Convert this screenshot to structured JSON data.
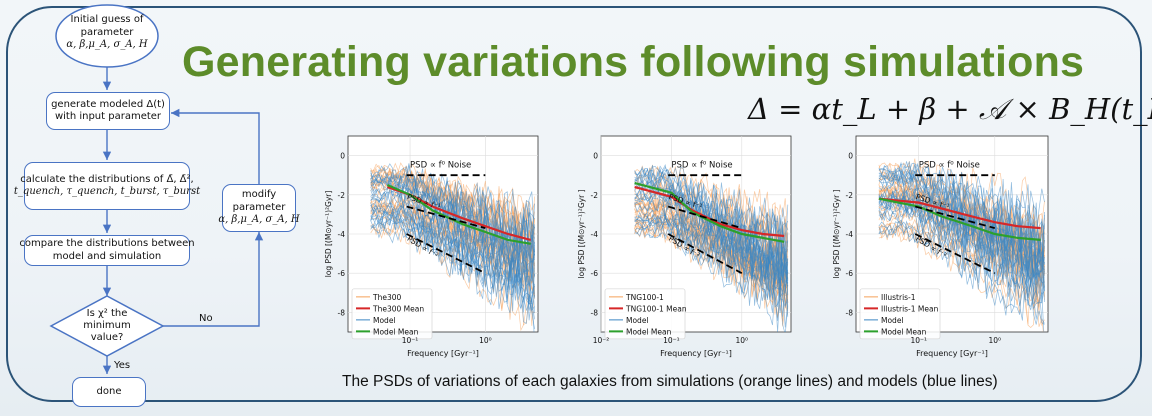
{
  "title": "Generating variations following simulations",
  "equation": "Δ = αt_L + β + 𝒜 × B_H(t_L)",
  "caption": "The PSDs of variations of each galaxies from simulations (orange lines) and models (blue lines)",
  "flowchart": {
    "start": {
      "line1": "Initial guess of",
      "line2": "parameter",
      "line3": "α, β,μ_A, σ_A, H"
    },
    "generate": {
      "line1": "generate modeled Δ(t)",
      "line2": "with input parameter"
    },
    "calculate": {
      "line1": "calculate the distributions of  Δ̄, Δ̄²,",
      "line2": "t_quench, τ_quench, t_burst, τ_burst"
    },
    "compare": {
      "line1": "compare the distributions between",
      "line2": "model and simulation"
    },
    "decision": {
      "line1": "Is χ² the",
      "line2": "minimum",
      "line3": "value?"
    },
    "modify": {
      "line1": "modify",
      "line2": "parameter",
      "line3": "α, β,μ_A, σ_A, H"
    },
    "done": "done",
    "no_label": "No",
    "yes_label": "Yes"
  },
  "chart_data": [
    {
      "type": "line",
      "xlabel": "Frequency [Gyr⁻¹]",
      "ylabel": "log PSD [(M⊙yr⁻¹)²Gyr]",
      "xscale": "log",
      "xlim": [
        0.015,
        5
      ],
      "ylim": [
        -9,
        1
      ],
      "xticks": [
        "10⁻¹",
        "10⁰"
      ],
      "yticks": [
        "0",
        "-2",
        "-4",
        "-6",
        "-8"
      ],
      "annotations": [
        "PSD ∝ f⁰ Noise",
        "PSD ∝ f⁻¹",
        "PSD ∝ f⁻²"
      ],
      "legend": [
        "The300",
        "The300 Mean",
        "Model",
        "Model Mean"
      ],
      "legend_position": "lower-left",
      "series": [
        {
          "name": "The300 Mean",
          "x": [
            0.05,
            0.1,
            0.2,
            0.5,
            1,
            2,
            4
          ],
          "y": [
            -1.6,
            -2.0,
            -2.6,
            -3.2,
            -3.6,
            -4.0,
            -4.3
          ]
        },
        {
          "name": "Model Mean",
          "x": [
            0.05,
            0.1,
            0.2,
            0.5,
            1,
            2,
            4
          ],
          "y": [
            -1.5,
            -2.0,
            -2.8,
            -3.5,
            -3.9,
            -4.3,
            -4.5
          ]
        }
      ],
      "colors": {
        "sim": "#f5a15a",
        "sim_mean": "#d62728",
        "model": "#3b86c4",
        "model_mean": "#2ca02c"
      }
    },
    {
      "type": "line",
      "xlabel": "Frequency [Gyr⁻¹]",
      "ylabel": "log PSD [(M⊙yr⁻¹)²Gyr ]",
      "xscale": "log",
      "xlim": [
        0.01,
        5
      ],
      "ylim": [
        -9,
        1
      ],
      "xticks": [
        "10⁻²",
        "10⁻¹",
        "10⁰"
      ],
      "yticks": [
        "0",
        "-2",
        "-4",
        "-6",
        "-8"
      ],
      "annotations": [
        "PSD ∝ f⁰ Noise",
        "PSD ∝ f⁻¹",
        "PSD ∝ f⁻²"
      ],
      "legend": [
        "TNG100-1",
        "TNG100-1 Mean",
        "Model",
        "Model Mean"
      ],
      "legend_position": "lower-left",
      "series": [
        {
          "name": "TNG100-1 Mean",
          "x": [
            0.03,
            0.1,
            0.2,
            0.5,
            1,
            2,
            4
          ],
          "y": [
            -1.6,
            -2.1,
            -2.8,
            -3.5,
            -3.8,
            -4.0,
            -4.1
          ]
        },
        {
          "name": "Model Mean",
          "x": [
            0.03,
            0.1,
            0.2,
            0.5,
            1,
            2,
            4
          ],
          "y": [
            -1.4,
            -1.9,
            -2.9,
            -3.6,
            -4.0,
            -4.2,
            -4.4
          ]
        }
      ],
      "colors": {
        "sim": "#f5a15a",
        "sim_mean": "#d62728",
        "model": "#3b86c4",
        "model_mean": "#2ca02c"
      }
    },
    {
      "type": "line",
      "xlabel": "Frequency [Gyr⁻¹]",
      "ylabel": "log PSD [(M⊙yr⁻¹)²Gyr ]",
      "xscale": "log",
      "xlim": [
        0.015,
        5
      ],
      "ylim": [
        -9,
        1
      ],
      "xticks": [
        "10⁻¹",
        "10⁰"
      ],
      "yticks": [
        "0",
        "-2",
        "-4",
        "-6",
        "-8"
      ],
      "annotations": [
        "PSD ∝ f⁰ Noise",
        "PSD ∝ f⁻¹",
        "PSD ∝ f⁻²"
      ],
      "legend": [
        "Illustris-1",
        "Illustris-1 Mean",
        "Model",
        "Model Mean"
      ],
      "legend_position": "lower-left",
      "series": [
        {
          "name": "Illustris-1 Mean",
          "x": [
            0.03,
            0.1,
            0.2,
            0.5,
            1,
            2,
            4
          ],
          "y": [
            -2.2,
            -2.4,
            -2.7,
            -3.1,
            -3.4,
            -3.6,
            -3.7
          ]
        },
        {
          "name": "Model Mean",
          "x": [
            0.03,
            0.1,
            0.2,
            0.5,
            1,
            2,
            4
          ],
          "y": [
            -2.2,
            -2.6,
            -3.1,
            -3.6,
            -4.0,
            -4.2,
            -4.3
          ]
        }
      ],
      "colors": {
        "sim": "#f5a15a",
        "sim_mean": "#d62728",
        "model": "#3b86c4",
        "model_mean": "#2ca02c"
      }
    }
  ]
}
